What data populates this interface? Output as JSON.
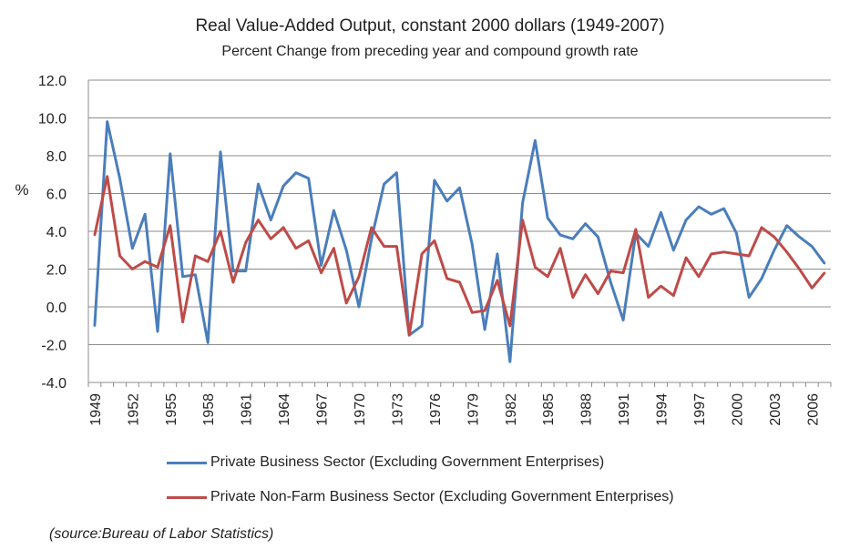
{
  "chart_data": {
    "type": "line",
    "title": "Real Value-Added  Output, constant 2000 dollars   (1949-2007)",
    "subtitle": "Percent Change from preceding year and compound growth rate",
    "xlabel": "",
    "ylabel": "%",
    "ylim": [
      -4.0,
      12.0
    ],
    "ytick_step": 2.0,
    "y_ticks": [
      "-4.0",
      "-2.0",
      "0.0",
      "2.0",
      "4.0",
      "6.0",
      "8.0",
      "10.0",
      "12.0"
    ],
    "grid": true,
    "x": [
      1949,
      1950,
      1951,
      1952,
      1953,
      1954,
      1955,
      1956,
      1957,
      1958,
      1959,
      1960,
      1961,
      1962,
      1963,
      1964,
      1965,
      1966,
      1967,
      1968,
      1969,
      1970,
      1971,
      1972,
      1973,
      1974,
      1975,
      1976,
      1977,
      1978,
      1979,
      1980,
      1981,
      1982,
      1983,
      1984,
      1985,
      1986,
      1987,
      1988,
      1989,
      1990,
      1991,
      1992,
      1993,
      1994,
      1995,
      1996,
      1997,
      1998,
      1999,
      2000,
      2001,
      2002,
      2003,
      2004,
      2005,
      2006,
      2007
    ],
    "x_tick_labels": [
      "1949",
      "1952",
      "1955",
      "1958",
      "1961",
      "1964",
      "1967",
      "1970",
      "1973",
      "1976",
      "1979",
      "1982",
      "1985",
      "1988",
      "1991",
      "1994",
      "1997",
      "2000",
      "2003",
      "2006"
    ],
    "series": [
      {
        "name": "Private Business Sector (Excluding Government Enterprises)",
        "color": "#4a7ebb",
        "values": [
          -1.0,
          9.8,
          6.8,
          3.1,
          4.9,
          -1.3,
          8.1,
          1.6,
          1.7,
          -1.9,
          8.2,
          1.9,
          1.9,
          6.5,
          4.6,
          6.4,
          7.1,
          6.8,
          2.2,
          5.1,
          3.0,
          0.0,
          3.6,
          6.5,
          7.1,
          -1.5,
          -1.0,
          6.7,
          5.6,
          6.3,
          3.3,
          -1.2,
          2.8,
          -2.9,
          5.5,
          8.8,
          4.7,
          3.8,
          3.6,
          4.4,
          3.7,
          1.3,
          -0.7,
          3.9,
          3.2,
          5.0,
          3.0,
          4.6,
          5.3,
          4.9,
          5.2,
          3.9,
          0.5,
          1.5,
          3.0,
          4.3,
          3.7,
          3.2,
          2.3
        ]
      },
      {
        "name": "Private Non-Farm Business Sector (Excluding Government Enterprises)",
        "color": "#be4b48",
        "values": [
          3.8,
          6.9,
          2.7,
          2.0,
          2.4,
          2.1,
          4.3,
          -0.8,
          2.7,
          2.4,
          4.0,
          1.3,
          3.4,
          4.6,
          3.6,
          4.2,
          3.1,
          3.5,
          1.8,
          3.1,
          0.2,
          1.6,
          4.2,
          3.2,
          3.2,
          -1.5,
          2.8,
          3.5,
          1.5,
          1.3,
          -0.3,
          -0.2,
          1.4,
          -1.0,
          4.6,
          2.1,
          1.6,
          3.1,
          0.5,
          1.7,
          0.7,
          1.9,
          1.8,
          4.1,
          0.5,
          1.1,
          0.6,
          2.6,
          1.6,
          2.8,
          2.9,
          2.8,
          2.7,
          4.2,
          3.7,
          2.9,
          2.0,
          1.0,
          1.8
        ]
      }
    ]
  },
  "source_note": "(source:Bureau of Labor  Statistics)"
}
